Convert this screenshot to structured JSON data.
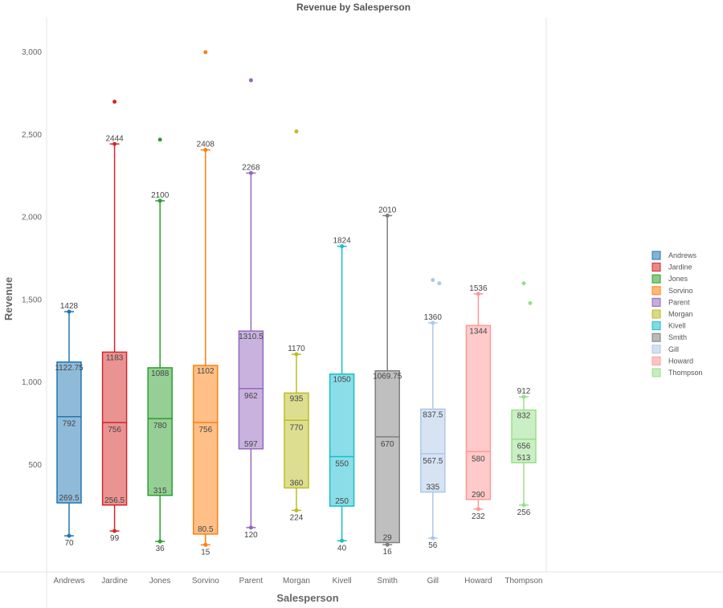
{
  "chart_data": {
    "type": "boxplot",
    "title": "Revenue by Salesperson",
    "xlabel": "Salesperson",
    "ylabel": "Revenue",
    "ylim": [
      0,
      3200
    ],
    "yticks": [
      "500",
      "1,000",
      "1,500",
      "2,000",
      "2,500",
      "3,000"
    ],
    "ytick_values": [
      500,
      1000,
      1500,
      2000,
      2500,
      3000
    ],
    "grid": false,
    "legend_position": "right",
    "categories": [
      "Andrews",
      "Jardine",
      "Jones",
      "Sorvino",
      "Parent",
      "Morgan",
      "Kivell",
      "Smith",
      "Gill",
      "Howard",
      "Thompson"
    ],
    "series": [
      {
        "name": "Andrews",
        "color": "#1f77b4",
        "min": 70,
        "q1": 269.5,
        "median": 792,
        "q3": 1122.75,
        "max": 1428,
        "labels": [
          "1428",
          "1122.75",
          "792",
          "269.5",
          "70"
        ],
        "outliers": []
      },
      {
        "name": "Jardine",
        "color": "#d62728",
        "min": 99,
        "q1": 256.5,
        "median": 756,
        "q3": 1183,
        "max": 2444,
        "labels": [
          "2444",
          "1183",
          "756",
          "256.5",
          "99"
        ],
        "outliers": [
          2700
        ]
      },
      {
        "name": "Jones",
        "color": "#2ca02c",
        "min": 36,
        "q1": 315,
        "median": 780,
        "q3": 1088,
        "max": 2100,
        "labels": [
          "2100",
          "1088",
          "780",
          "315",
          "36"
        ],
        "outliers": [
          2470
        ]
      },
      {
        "name": "Sorvino",
        "color": "#ff7f0e",
        "min": 15,
        "q1": 80.5,
        "median": 756,
        "q3": 1102,
        "max": 2408,
        "labels": [
          "2408",
          "1102",
          "756",
          "80.5",
          "15"
        ],
        "outliers": [
          3000
        ]
      },
      {
        "name": "Parent",
        "color": "#9467bd",
        "min": 120,
        "q1": 597,
        "median": 962,
        "q3": 1310.5,
        "max": 2268,
        "labels": [
          "2268",
          "1310.5",
          "962",
          "597",
          "120"
        ],
        "outliers": [
          2830
        ]
      },
      {
        "name": "Morgan",
        "color": "#bcbd22",
        "min": 224,
        "q1": 360,
        "median": 770,
        "q3": 935,
        "max": 1170,
        "labels": [
          "1170",
          "935",
          "770",
          "360",
          "224"
        ],
        "outliers": [
          2520
        ]
      },
      {
        "name": "Kivell",
        "color": "#17becf",
        "min": 40,
        "q1": 250,
        "median": 550,
        "q3": 1050,
        "max": 1824,
        "labels": [
          "1824",
          "1050",
          "550",
          "250",
          "40"
        ],
        "outliers": []
      },
      {
        "name": "Smith",
        "color": "#7f7f7f",
        "min": 16,
        "q1": 29,
        "median": 670,
        "q3": 1069.75,
        "max": 2010,
        "labels": [
          "2010",
          "1069.75",
          "670",
          "29",
          "16"
        ],
        "outliers": []
      },
      {
        "name": "Gill",
        "color": "#aec7e8",
        "min": 56,
        "q1": 335,
        "median": 567.5,
        "q3": 837.5,
        "max": 1360,
        "labels": [
          "1360",
          "837.5",
          "567.5",
          "335",
          "56"
        ],
        "outliers": [
          1620,
          1600
        ]
      },
      {
        "name": "Howard",
        "color": "#ff9896",
        "min": 232,
        "q1": 290,
        "median": 580,
        "q3": 1344,
        "max": 1536,
        "labels": [
          "1536",
          "1344",
          "580",
          "290",
          "232"
        ],
        "outliers": []
      },
      {
        "name": "Thompson",
        "color": "#98df8a",
        "min": 256,
        "q1": 513,
        "median": 656,
        "q3": 832,
        "max": 912,
        "labels": [
          "912",
          "832",
          "656",
          "513",
          "256"
        ],
        "outliers": [
          1600,
          1480
        ]
      }
    ]
  }
}
